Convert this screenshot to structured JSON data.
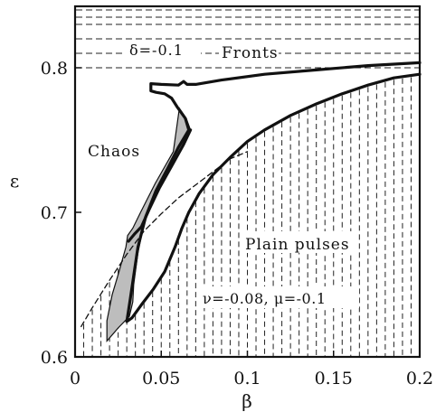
{
  "chart_data": {
    "type": "line",
    "xlabel": "β",
    "ylabel": "ε",
    "xlim": [
      0,
      0.2
    ],
    "ylim": [
      0.6,
      0.85
    ],
    "xticks": [
      {
        "v": 0,
        "label": "0"
      },
      {
        "v": 0.05,
        "label": "0.05"
      },
      {
        "v": 0.1,
        "label": "0.1"
      },
      {
        "v": 0.15,
        "label": "0.15"
      },
      {
        "v": 0.2,
        "label": "0.2"
      }
    ],
    "yticks": [
      {
        "v": 0.6,
        "label": "0.6"
      },
      {
        "v": 0.7,
        "label": "0.7"
      },
      {
        "v": 0.8,
        "label": "0.8"
      }
    ],
    "grid": false,
    "annotations": {
      "fronts": "Fronts",
      "delta": "δ=-0.1",
      "chaos": "Chaos",
      "plain_pulses": "Plain pulses",
      "params": "ν=-0.08,  μ=-0.1"
    },
    "regions": [
      {
        "name": "fronts",
        "pattern": "horizontal-dashed",
        "y_lines": [
          0.8,
          0.81,
          0.82,
          0.83,
          0.835,
          0.84
        ]
      },
      {
        "name": "plain pulses",
        "pattern": "vertical-dashed",
        "x_lines": [
          0.005,
          0.01,
          0.015,
          0.02,
          0.025,
          0.03,
          0.035,
          0.04,
          0.045,
          0.05,
          0.055,
          0.06,
          0.065,
          0.07,
          0.075,
          0.08,
          0.085,
          0.09,
          0.095,
          0.1,
          0.105,
          0.11,
          0.115,
          0.12,
          0.125,
          0.13,
          0.135,
          0.14,
          0.145,
          0.15,
          0.155,
          0.16,
          0.165,
          0.17,
          0.175,
          0.18,
          0.185,
          0.19,
          0.195
        ]
      },
      {
        "name": "shaded",
        "fill": "#bdbdbd",
        "points": [
          [
            0.0605,
            0.772
          ],
          [
            0.0645,
            0.765
          ],
          [
            0.067,
            0.757
          ],
          [
            0.061,
            0.742
          ],
          [
            0.053,
            0.727
          ],
          [
            0.046,
            0.711
          ],
          [
            0.04,
            0.692
          ],
          [
            0.0365,
            0.672
          ],
          [
            0.034,
            0.65
          ],
          [
            0.0335,
            0.638
          ],
          [
            0.0315,
            0.628
          ],
          [
            0.025,
            0.62
          ],
          [
            0.0185,
            0.611
          ],
          [
            0.0185,
            0.625
          ],
          [
            0.0215,
            0.643
          ],
          [
            0.0255,
            0.659
          ],
          [
            0.0295,
            0.676
          ],
          [
            0.0305,
            0.684
          ],
          [
            0.0335,
            0.689
          ],
          [
            0.038,
            0.7
          ],
          [
            0.0465,
            0.72
          ],
          [
            0.057,
            0.742
          ]
        ]
      }
    ],
    "series": [
      {
        "id": "chaos-boundary",
        "stroke_width": 3.2,
        "points": [
          [
            0.2,
            0.8035
          ],
          [
            0.17,
            0.8015
          ],
          [
            0.14,
            0.7985
          ],
          [
            0.11,
            0.7955
          ],
          [
            0.085,
            0.7915
          ],
          [
            0.07,
            0.7885
          ],
          [
            0.065,
            0.7885
          ],
          [
            0.063,
            0.7905
          ],
          [
            0.06,
            0.788
          ],
          [
            0.05,
            0.7885
          ],
          [
            0.044,
            0.789
          ],
          [
            0.044,
            0.784
          ],
          [
            0.047,
            0.783
          ],
          [
            0.052,
            0.782
          ],
          [
            0.056,
            0.779
          ],
          [
            0.0595,
            0.7725
          ],
          [
            0.064,
            0.765
          ],
          [
            0.066,
            0.757
          ],
          [
            0.06,
            0.745
          ],
          [
            0.054,
            0.731
          ],
          [
            0.047,
            0.715
          ],
          [
            0.041,
            0.697
          ],
          [
            0.0365,
            0.676
          ],
          [
            0.0345,
            0.66
          ],
          [
            0.032,
            0.64
          ],
          [
            0.03,
            0.6245
          ],
          [
            0.033,
            0.627
          ],
          [
            0.0385,
            0.636
          ],
          [
            0.0455,
            0.647
          ],
          [
            0.052,
            0.659
          ],
          [
            0.058,
            0.676
          ],
          [
            0.062,
            0.689
          ],
          [
            0.066,
            0.7
          ],
          [
            0.072,
            0.713
          ],
          [
            0.08,
            0.726
          ],
          [
            0.09,
            0.738
          ],
          [
            0.1,
            0.749
          ],
          [
            0.11,
            0.757
          ],
          [
            0.125,
            0.767
          ],
          [
            0.14,
            0.775
          ],
          [
            0.155,
            0.782
          ],
          [
            0.17,
            0.788
          ],
          [
            0.185,
            0.793
          ],
          [
            0.2,
            0.7955
          ]
        ]
      },
      {
        "id": "chaos-left-edge",
        "stroke_width": 3.2,
        "points": [
          [
            0.067,
            0.757
          ],
          [
            0.063,
            0.747
          ],
          [
            0.056,
            0.732
          ],
          [
            0.049,
            0.717
          ],
          [
            0.043,
            0.702
          ],
          [
            0.0385,
            0.69
          ],
          [
            0.0345,
            0.685
          ],
          [
            0.031,
            0.68
          ]
        ]
      },
      {
        "id": "dashed-curve",
        "dashed": true,
        "stroke_width": 1.3,
        "points": [
          [
            0.0035,
            0.621
          ],
          [
            0.01,
            0.634
          ],
          [
            0.02,
            0.653
          ],
          [
            0.03,
            0.671
          ],
          [
            0.04,
            0.687
          ],
          [
            0.05,
            0.699
          ],
          [
            0.06,
            0.71
          ],
          [
            0.07,
            0.719
          ],
          [
            0.08,
            0.728
          ],
          [
            0.09,
            0.737
          ],
          [
            0.1,
            0.742
          ]
        ]
      }
    ]
  }
}
